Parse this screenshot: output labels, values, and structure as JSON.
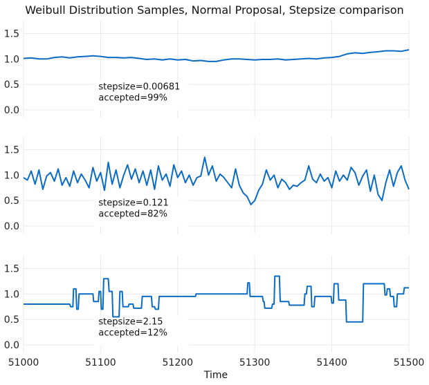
{
  "chart_data": {
    "type": "line",
    "title": "Weibull Distribution Samples, Normal Proposal, Stepsize comparison",
    "xlabel": "Time",
    "ylabel": "",
    "xlim": [
      51000,
      51500
    ],
    "ylim": [
      -0.15,
      1.75
    ],
    "xticks": [
      51000,
      51100,
      51200,
      51300,
      51400,
      51500
    ],
    "yticks": [
      0.0,
      0.5,
      1.0,
      1.5
    ],
    "ytick_labels": [
      "0.0",
      "0.5",
      "1.0",
      "1.5"
    ],
    "grid": true,
    "line_color": "#0a6bc4",
    "panels": [
      {
        "annotation": [
          "stepsize=0.00681",
          "accepted=99%"
        ],
        "x": [
          51000,
          51010,
          51020,
          51030,
          51040,
          51050,
          51060,
          51070,
          51080,
          51090,
          51100,
          51110,
          51120,
          51130,
          51140,
          51150,
          51160,
          51170,
          51180,
          51190,
          51200,
          51210,
          51220,
          51230,
          51240,
          51250,
          51260,
          51270,
          51280,
          51290,
          51300,
          51310,
          51320,
          51330,
          51340,
          51350,
          51360,
          51370,
          51380,
          51390,
          51400,
          51410,
          51420,
          51430,
          51440,
          51450,
          51460,
          51470,
          51480,
          51490,
          51500
        ],
        "y": [
          1.01,
          1.02,
          1.0,
          1.0,
          1.03,
          1.04,
          1.02,
          1.04,
          1.05,
          1.06,
          1.05,
          1.03,
          1.03,
          1.02,
          1.03,
          1.01,
          0.99,
          1.0,
          0.98,
          1.0,
          0.98,
          0.99,
          0.96,
          0.97,
          0.95,
          0.95,
          0.98,
          1.0,
          1.0,
          0.99,
          0.98,
          0.99,
          0.99,
          1.0,
          0.98,
          0.99,
          1.0,
          1.01,
          1.0,
          1.02,
          1.03,
          1.05,
          1.1,
          1.12,
          1.11,
          1.13,
          1.14,
          1.16,
          1.16,
          1.15,
          1.18
        ]
      },
      {
        "annotation": [
          "stepsize=0.121",
          "accepted=82%"
        ],
        "x": [
          51000,
          51005,
          51010,
          51015,
          51020,
          51025,
          51030,
          51035,
          51040,
          51045,
          51050,
          51055,
          51060,
          51065,
          51070,
          51075,
          51080,
          51085,
          51090,
          51095,
          51100,
          51105,
          51110,
          51115,
          51120,
          51125,
          51130,
          51135,
          51140,
          51145,
          51150,
          51155,
          51160,
          51165,
          51170,
          51175,
          51180,
          51185,
          51190,
          51195,
          51200,
          51205,
          51210,
          51215,
          51220,
          51225,
          51230,
          51235,
          51240,
          51245,
          51250,
          51255,
          51260,
          51265,
          51270,
          51275,
          51280,
          51285,
          51290,
          51295,
          51300,
          51305,
          51310,
          51315,
          51320,
          51325,
          51330,
          51335,
          51340,
          51345,
          51350,
          51355,
          51360,
          51365,
          51370,
          51375,
          51380,
          51385,
          51390,
          51395,
          51400,
          51405,
          51410,
          51415,
          51420,
          51425,
          51430,
          51435,
          51440,
          51445,
          51450,
          51455,
          51460,
          51465,
          51470,
          51475,
          51480,
          51485,
          51490,
          51495,
          51500
        ],
        "y": [
          0.95,
          0.9,
          1.08,
          0.82,
          1.1,
          0.72,
          0.98,
          1.05,
          0.88,
          1.12,
          0.8,
          0.95,
          0.78,
          1.08,
          0.85,
          1.02,
          0.9,
          0.75,
          1.15,
          0.88,
          1.05,
          0.7,
          1.25,
          0.82,
          1.1,
          0.75,
          1.0,
          1.2,
          0.92,
          1.12,
          0.85,
          1.08,
          0.8,
          1.1,
          0.72,
          1.18,
          0.9,
          1.02,
          0.78,
          1.2,
          0.95,
          1.08,
          0.85,
          1.0,
          0.8,
          0.95,
          0.98,
          1.35,
          1.0,
          1.18,
          0.88,
          1.02,
          0.95,
          0.85,
          0.75,
          1.12,
          0.8,
          0.65,
          0.58,
          0.42,
          0.5,
          0.7,
          0.82,
          1.1,
          0.9,
          1.0,
          0.75,
          0.92,
          0.85,
          0.72,
          0.8,
          0.78,
          0.85,
          0.9,
          1.18,
          0.92,
          0.85,
          1.02,
          0.88,
          0.95,
          0.75,
          1.08,
          0.88,
          1.0,
          0.9,
          1.15,
          1.05,
          0.8,
          0.98,
          1.1,
          0.68,
          1.0,
          0.62,
          0.5,
          0.85,
          1.1,
          0.78,
          1.05,
          1.18,
          0.9,
          0.72
        ]
      },
      {
        "annotation": [
          "stepsize=2.15",
          "accepted=12%"
        ],
        "x": [
          51000,
          51060,
          51061,
          51064,
          51065,
          51068,
          51069,
          51071,
          51072,
          51090,
          51091,
          51097,
          51098,
          51100,
          51101,
          51103,
          51104,
          51110,
          51111,
          51115,
          51116,
          51124,
          51125,
          51128,
          51129,
          51136,
          51137,
          51142,
          51143,
          51153,
          51154,
          51166,
          51167,
          51170,
          51171,
          51175,
          51176,
          51223,
          51224,
          51290,
          51291,
          51293,
          51294,
          51310,
          51311,
          51312,
          51313,
          51322,
          51323,
          51325,
          51326,
          51332,
          51333,
          51344,
          51345,
          51364,
          51365,
          51367,
          51368,
          51373,
          51374,
          51377,
          51378,
          51399,
          51400,
          51402,
          51403,
          51408,
          51409,
          51418,
          51419,
          51440,
          51441,
          51468,
          51469,
          51471,
          51472,
          51475,
          51476,
          51480,
          51481,
          51484,
          51485,
          51493,
          51494,
          51500
        ],
        "y": [
          0.8,
          0.8,
          0.75,
          0.75,
          1.1,
          1.1,
          0.7,
          0.7,
          1.0,
          1.0,
          0.85,
          0.85,
          1.05,
          1.05,
          0.7,
          0.7,
          1.3,
          1.3,
          1.05,
          1.05,
          0.55,
          0.55,
          1.05,
          1.05,
          0.75,
          0.75,
          0.8,
          0.8,
          0.72,
          0.72,
          0.95,
          0.95,
          0.75,
          0.75,
          0.7,
          0.7,
          0.95,
          0.95,
          1.0,
          1.0,
          1.22,
          1.22,
          0.95,
          0.95,
          0.85,
          0.85,
          0.72,
          0.72,
          0.8,
          0.8,
          1.35,
          1.35,
          0.85,
          0.85,
          0.78,
          0.78,
          1.0,
          1.0,
          1.15,
          1.15,
          0.75,
          0.75,
          0.95,
          0.95,
          0.82,
          0.82,
          1.2,
          1.2,
          0.88,
          0.88,
          0.45,
          0.45,
          1.2,
          1.2,
          0.98,
          0.98,
          1.1,
          1.1,
          0.95,
          0.95,
          0.75,
          0.75,
          1.0,
          1.0,
          1.12,
          1.12
        ]
      }
    ]
  }
}
